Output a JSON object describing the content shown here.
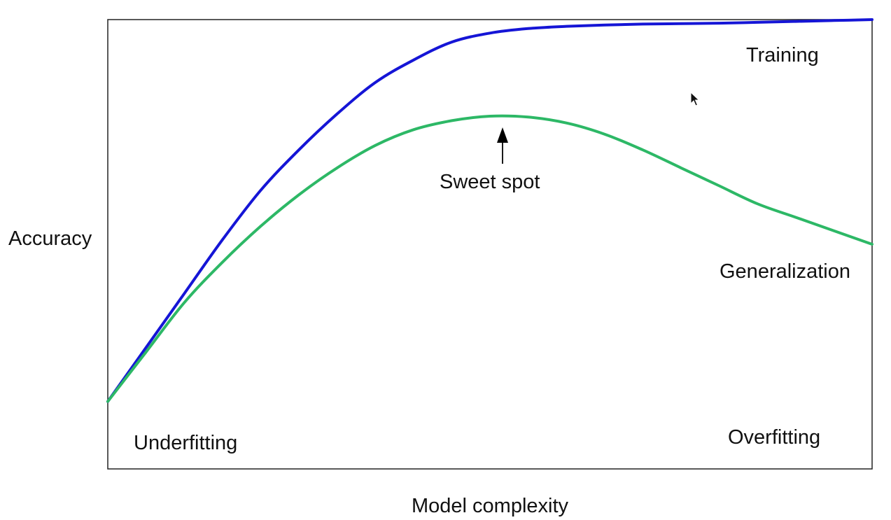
{
  "chart_data": {
    "type": "line",
    "title": "",
    "xlabel": "Model complexity",
    "ylabel": "Accuracy",
    "grid": false,
    "legend": "none",
    "series": [
      {
        "name": "Training",
        "color": "#1515d6",
        "x": [
          0,
          0.05,
          0.1,
          0.15,
          0.2,
          0.25,
          0.3,
          0.35,
          0.4,
          0.45,
          0.5,
          0.55,
          0.6,
          0.65,
          0.7,
          0.75,
          0.8,
          0.85,
          0.9,
          0.95,
          1.0
        ],
        "values": [
          0.15,
          0.27,
          0.39,
          0.51,
          0.62,
          0.71,
          0.79,
          0.86,
          0.91,
          0.95,
          0.97,
          0.98,
          0.985,
          0.988,
          0.99,
          0.991,
          0.992,
          0.994,
          0.996,
          0.998,
          1.0
        ]
      },
      {
        "name": "Generalization",
        "color": "#2db866",
        "x": [
          0,
          0.05,
          0.1,
          0.15,
          0.2,
          0.25,
          0.3,
          0.35,
          0.4,
          0.45,
          0.5,
          0.55,
          0.6,
          0.65,
          0.7,
          0.75,
          0.8,
          0.85,
          0.9,
          0.95,
          1.0
        ],
        "values": [
          0.15,
          0.26,
          0.37,
          0.46,
          0.54,
          0.61,
          0.67,
          0.72,
          0.755,
          0.775,
          0.785,
          0.783,
          0.77,
          0.745,
          0.71,
          0.67,
          0.63,
          0.59,
          0.56,
          0.53,
          0.5
        ]
      }
    ],
    "annotations": [
      {
        "id": "underfitting",
        "text": "Underfitting"
      },
      {
        "id": "overfitting",
        "text": "Overfitting"
      },
      {
        "id": "sweet_spot",
        "text": "Sweet spot",
        "x": 0.52,
        "y": 0.785
      }
    ]
  }
}
